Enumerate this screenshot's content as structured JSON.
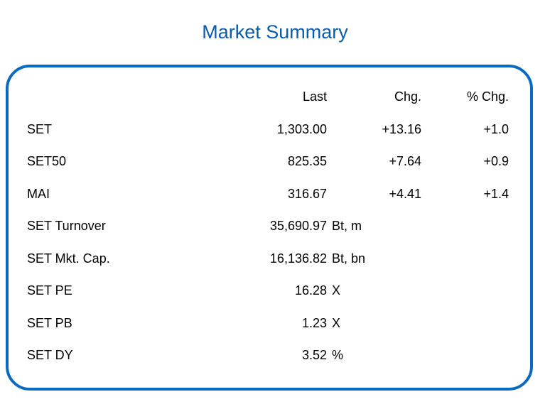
{
  "title": "Market Summary",
  "headers": {
    "last": "Last",
    "chg": "Chg.",
    "pct_chg": "% Chg."
  },
  "rows": [
    {
      "label": "SET",
      "last": "1,303.00",
      "chg": "+13.16",
      "pct": "+1.0"
    },
    {
      "label": "SET50",
      "last": "825.35",
      "chg": "+7.64",
      "pct": "+0.9"
    },
    {
      "label": "MAI",
      "last": "316.67",
      "chg": "+4.41",
      "pct": "+1.4"
    },
    {
      "label": "SET Turnover",
      "value": "35,690.97",
      "unit": "Bt, m"
    },
    {
      "label": "SET Mkt. Cap.",
      "value": "16,136.82",
      "unit": "Bt, bn"
    },
    {
      "label": "SET PE",
      "value": "16.28",
      "unit": "X"
    },
    {
      "label": "SET PB",
      "value": "1.23",
      "unit": "X"
    },
    {
      "label": "SET DY",
      "value": "3.52",
      "unit": "%"
    }
  ],
  "colors": {
    "title": "#0a5ca8",
    "border": "#0a6ac2"
  }
}
